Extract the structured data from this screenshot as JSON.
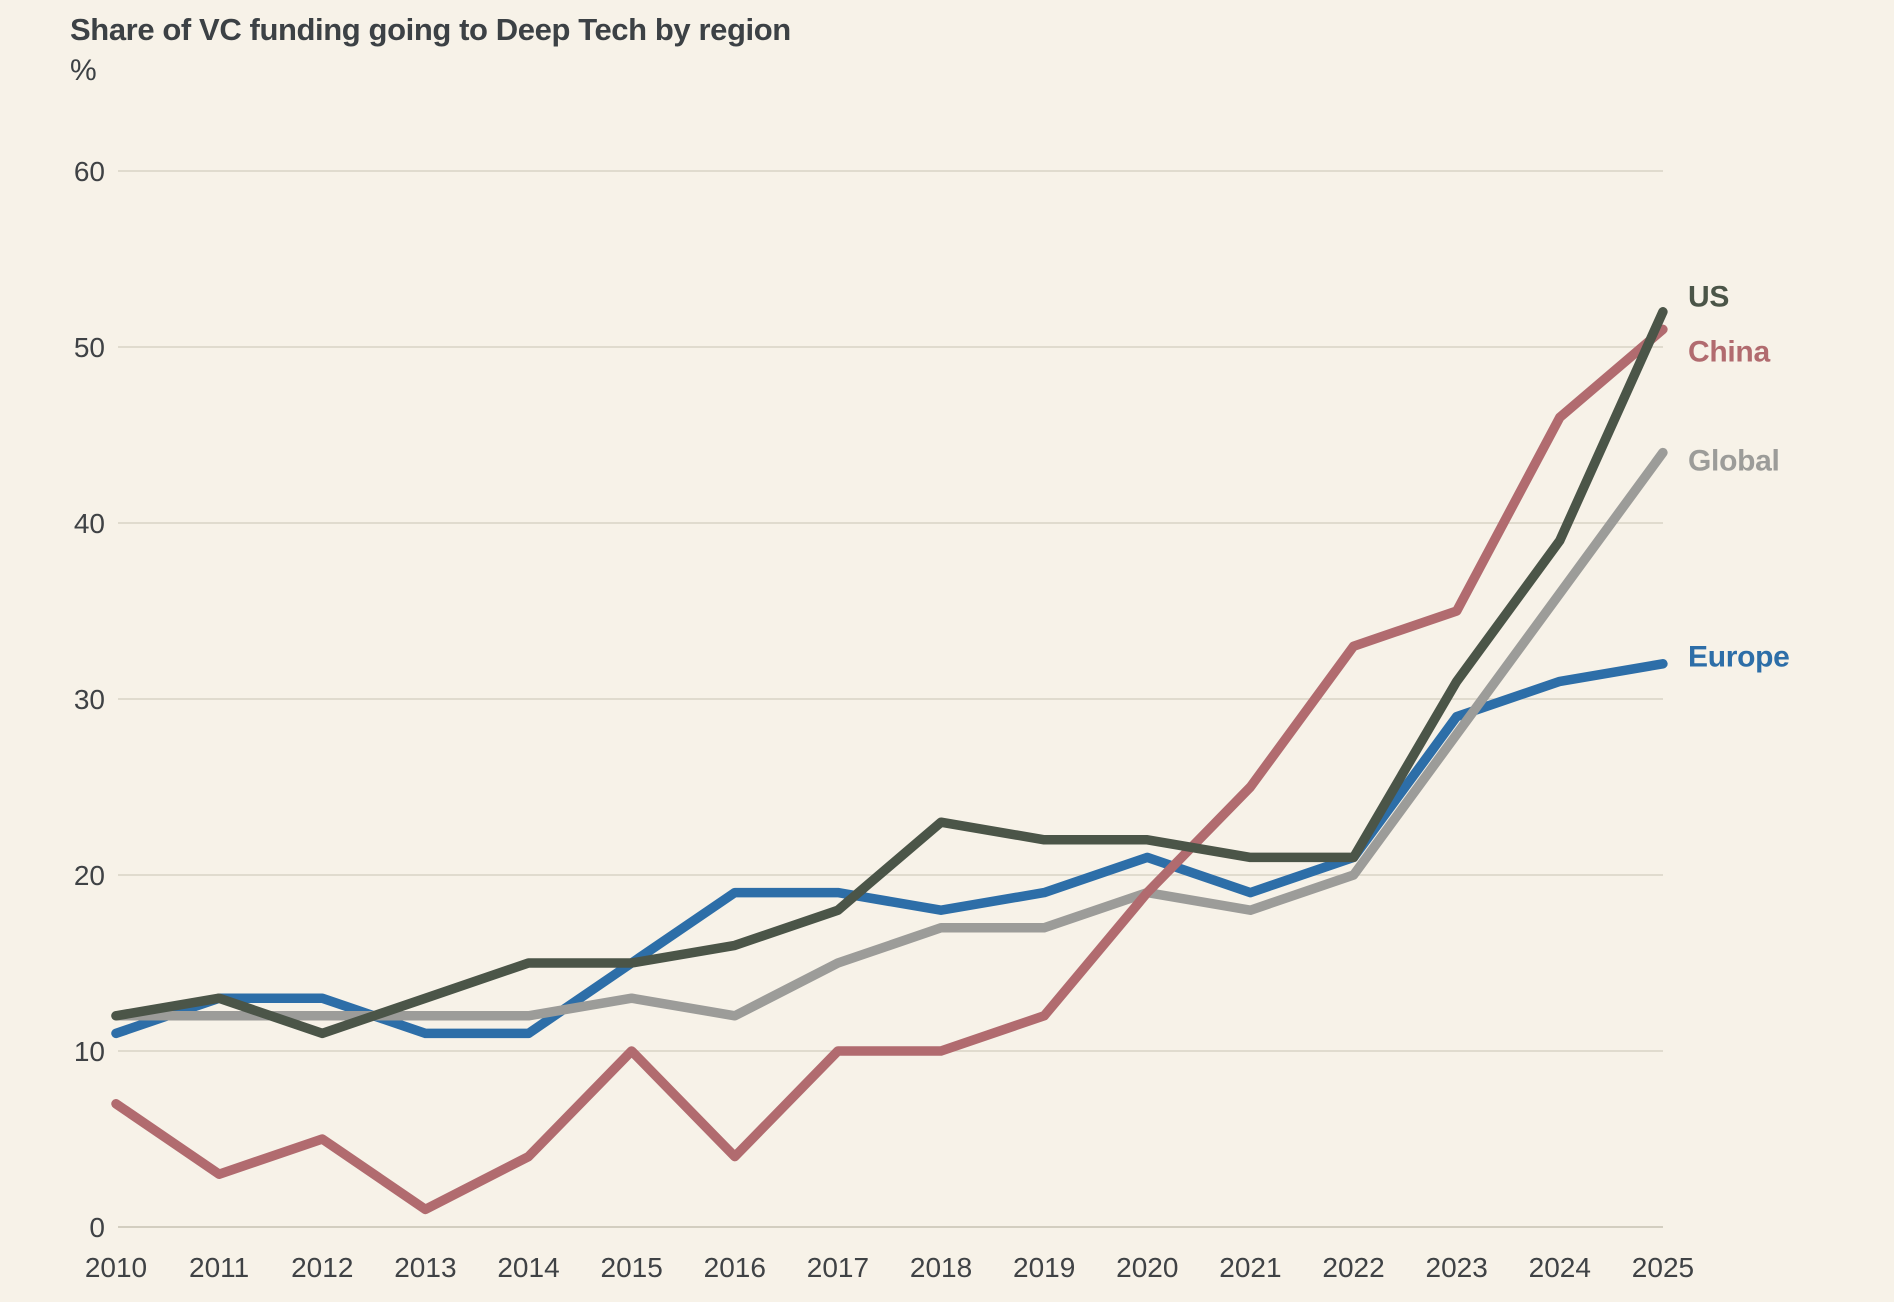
{
  "title": "Share of VC funding going to Deep Tech by region",
  "subtitle": "%",
  "colors": {
    "background": "#f7f2e8",
    "gridline": "#d9d3c5",
    "baseline": "#c7c1b3",
    "axis_text": "#3f4245",
    "title_text": "#3c4145"
  },
  "chart_data": {
    "type": "line",
    "title": "Share of VC funding going to Deep Tech by region",
    "ylabel": "%",
    "xlabel": "",
    "grid": true,
    "legend_position": "right-end-labels",
    "ylim": [
      0,
      60
    ],
    "yticks": [
      0,
      10,
      20,
      30,
      40,
      50,
      60
    ],
    "x": [
      2010,
      2011,
      2012,
      2013,
      2014,
      2015,
      2016,
      2017,
      2018,
      2019,
      2020,
      2021,
      2022,
      2023,
      2024,
      2025
    ],
    "series": [
      {
        "name": "US",
        "color": "#4b5548",
        "values": [
          12,
          13,
          11,
          13,
          15,
          15,
          16,
          18,
          23,
          22,
          22,
          21,
          21,
          31,
          39,
          52
        ]
      },
      {
        "name": "China",
        "color": "#b16b6f",
        "values": [
          7,
          3,
          5,
          1,
          4,
          10,
          4,
          10,
          10,
          12,
          19,
          25,
          33,
          35,
          46,
          51
        ]
      },
      {
        "name": "Global",
        "color": "#9c9c99",
        "values": [
          12,
          12,
          12,
          12,
          12,
          13,
          12,
          15,
          17,
          17,
          19,
          18,
          20,
          28,
          36,
          44
        ]
      },
      {
        "name": "Europe",
        "color": "#2d6ea8",
        "values": [
          11,
          13,
          13,
          11,
          11,
          15,
          19,
          19,
          18,
          19,
          21,
          19,
          21,
          29,
          31,
          32
        ]
      }
    ]
  }
}
